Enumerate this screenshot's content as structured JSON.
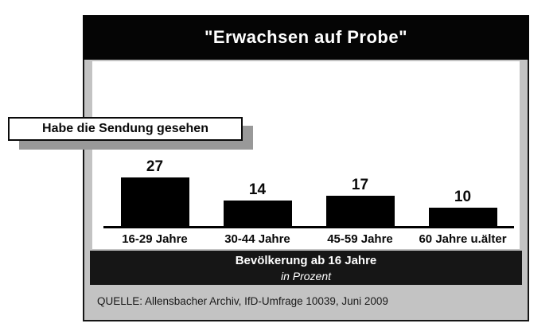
{
  "header": {
    "title": "\"Erwachsen auf Probe\""
  },
  "callout": {
    "label": "Habe die Sendung gesehen"
  },
  "chart_data": {
    "type": "bar",
    "title": "\"Erwachsen auf Probe\"",
    "subtitle": "Habe die Sendung gesehen",
    "categories": [
      "16-29 Jahre",
      "30-44 Jahre",
      "45-59 Jahre",
      "60 Jahre u.älter"
    ],
    "values": [
      27,
      14,
      17,
      10
    ],
    "population_note": "Bevölkerung ab 16 Jahre",
    "unit_note": "in Prozent",
    "ylim": [
      0,
      30
    ],
    "grid": false,
    "legend": false,
    "value_labels": true,
    "bar_color": "#000000"
  },
  "footer_bar": {
    "line1": "Bevölkerung ab 16 Jahre",
    "line2": "in Prozent"
  },
  "source": {
    "text": "QUELLE: Allensbacher Archiv, IfD-Umfrage 10039, Juni 2009"
  },
  "colors": {
    "panel_gray": "#c3c3c3",
    "shadow_gray": "#999999",
    "title_bar_black": "#050505",
    "info_bar_black": "#161616",
    "bar_black": "#000000",
    "text_white": "#ffffff",
    "text_black": "#0a0a0a"
  }
}
